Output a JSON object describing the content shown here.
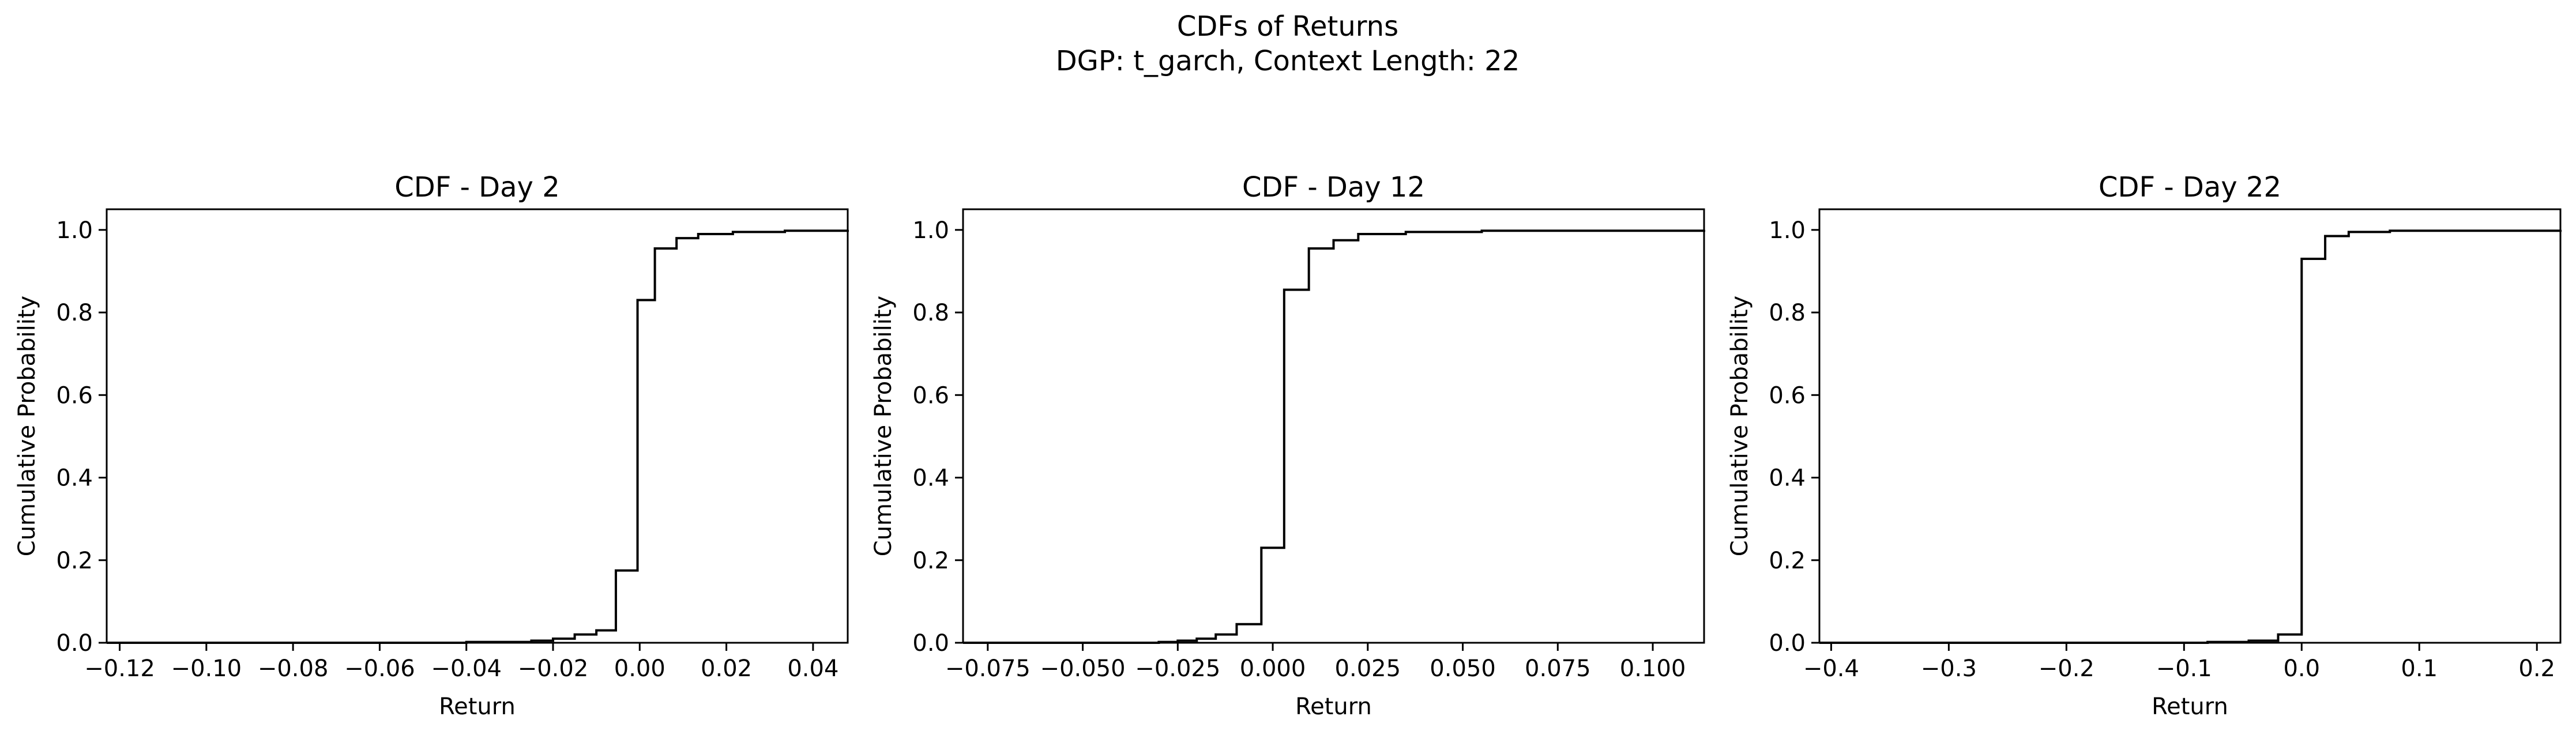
{
  "figure": {
    "title_line1": "CDFs of Returns",
    "title_line2": "DGP: t_garch, Context Length: 22"
  },
  "chart_data": [
    {
      "type": "line",
      "subtype": "step",
      "title": "CDF - Day 2",
      "xlabel": "Return",
      "ylabel": "Cumulative Probability",
      "xlim": [
        -0.123,
        0.048
      ],
      "ylim": [
        0.0,
        1.05
      ],
      "x_ticks": [
        -0.12,
        -0.1,
        -0.08,
        -0.06,
        -0.04,
        -0.02,
        0.0,
        0.02,
        0.04
      ],
      "x_tick_labels": [
        "−0.12",
        "−0.10",
        "−0.08",
        "−0.06",
        "−0.04",
        "−0.02",
        "0.00",
        "0.02",
        "0.04"
      ],
      "y_ticks": [
        0.0,
        0.2,
        0.4,
        0.6,
        0.8,
        1.0
      ],
      "y_tick_labels": [
        "0.0",
        "0.2",
        "0.4",
        "0.6",
        "0.8",
        "1.0"
      ],
      "color": "#000000",
      "grid": false,
      "x": [
        -0.123,
        -0.045,
        -0.04,
        -0.025,
        -0.02,
        -0.015,
        -0.01,
        -0.0055,
        -0.0005,
        0.0035,
        0.0085,
        0.0135,
        0.0215,
        0.0335,
        0.048
      ],
      "y": [
        0.0,
        0.0,
        0.002,
        0.005,
        0.01,
        0.02,
        0.03,
        0.175,
        0.83,
        0.955,
        0.98,
        0.99,
        0.995,
        0.998,
        1.0
      ]
    },
    {
      "type": "line",
      "subtype": "step",
      "title": "CDF - Day 12",
      "xlabel": "Return",
      "ylabel": "Cumulative Probability",
      "xlim": [
        -0.0815,
        0.1135
      ],
      "ylim": [
        0.0,
        1.05
      ],
      "x_ticks": [
        -0.075,
        -0.05,
        -0.025,
        0.0,
        0.025,
        0.05,
        0.075,
        0.1
      ],
      "x_tick_labels": [
        "−0.075",
        "−0.050",
        "−0.025",
        "0.000",
        "0.025",
        "0.050",
        "0.075",
        "0.100"
      ],
      "y_ticks": [
        0.0,
        0.2,
        0.4,
        0.6,
        0.8,
        1.0
      ],
      "y_tick_labels": [
        "0.0",
        "0.2",
        "0.4",
        "0.6",
        "0.8",
        "1.0"
      ],
      "color": "#000000",
      "grid": false,
      "x": [
        -0.0815,
        -0.045,
        -0.03,
        -0.025,
        -0.02,
        -0.015,
        -0.0095,
        -0.003,
        0.003,
        0.0095,
        0.016,
        0.0225,
        0.035,
        0.055,
        0.1135
      ],
      "y": [
        0.0,
        0.0,
        0.002,
        0.005,
        0.01,
        0.02,
        0.045,
        0.23,
        0.855,
        0.955,
        0.975,
        0.99,
        0.995,
        0.998,
        1.0
      ]
    },
    {
      "type": "line",
      "subtype": "step",
      "title": "CDF - Day 22",
      "xlabel": "Return",
      "ylabel": "Cumulative Probability",
      "xlim": [
        -0.41,
        0.22
      ],
      "ylim": [
        0.0,
        1.05
      ],
      "x_ticks": [
        -0.4,
        -0.3,
        -0.2,
        -0.1,
        0.0,
        0.1,
        0.2
      ],
      "x_tick_labels": [
        "−0.4",
        "−0.3",
        "−0.2",
        "−0.1",
        "0.0",
        "0.1",
        "0.2"
      ],
      "y_ticks": [
        0.0,
        0.2,
        0.4,
        0.6,
        0.8,
        1.0
      ],
      "y_tick_labels": [
        "0.0",
        "0.2",
        "0.4",
        "0.6",
        "0.8",
        "1.0"
      ],
      "color": "#000000",
      "grid": false,
      "x": [
        -0.41,
        -0.11,
        -0.08,
        -0.045,
        -0.02,
        0.0,
        0.02,
        0.04,
        0.075,
        0.22
      ],
      "y": [
        0.0,
        0.0,
        0.002,
        0.005,
        0.02,
        0.93,
        0.985,
        0.995,
        0.998,
        1.0
      ]
    }
  ]
}
